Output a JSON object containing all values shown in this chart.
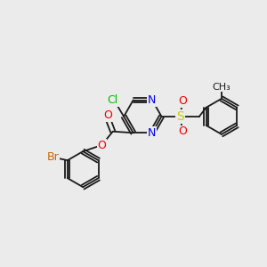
{
  "background_color": "#ebebeb",
  "bond_color": "#1a1a1a",
  "atom_colors": {
    "Cl": "#00bb00",
    "N": "#0000ee",
    "O": "#ee0000",
    "Br": "#cc6600",
    "S": "#cccc00",
    "C": "#1a1a1a"
  }
}
